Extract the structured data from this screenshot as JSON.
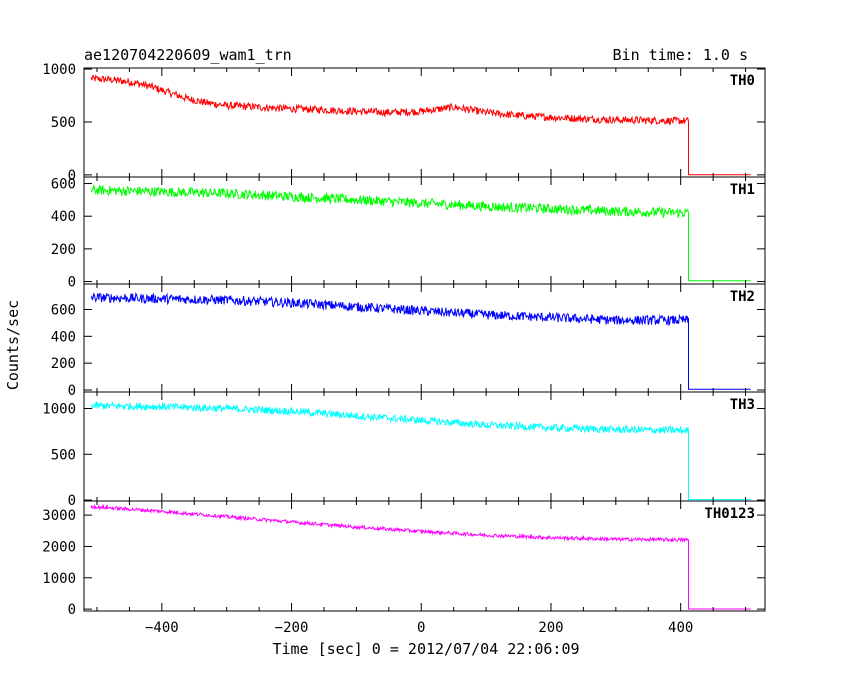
{
  "chart_data": {
    "type": "line",
    "title": "ae120704220609_wam1_trn",
    "bin_time_label": "Bin time: 1.0 s",
    "xlabel": "Time [sec] 0 = 2012/07/04 22:06:09",
    "ylabel": "Counts/sec",
    "xlim": [
      -520,
      530
    ],
    "x_ticks": [
      -400,
      -200,
      0,
      200,
      400
    ],
    "x_tick_labels": [
      "−400",
      "−200",
      "0",
      "200",
      "400"
    ],
    "grid": false,
    "panels": [
      {
        "series_name": "TH0",
        "color": "#ff0000",
        "ylim": [
          -20,
          1010
        ],
        "y_ticks": [
          0,
          500,
          1000
        ],
        "y_tick_labels": [
          "0",
          "500",
          "1000"
        ],
        "x": [
          -509,
          -480,
          -450,
          -420,
          -390,
          -360,
          -330,
          -300,
          -250,
          -200,
          -150,
          -100,
          -50,
          0,
          50,
          100,
          150,
          200,
          250,
          300,
          350,
          410
        ],
        "values": [
          910,
          900,
          880,
          840,
          780,
          720,
          680,
          655,
          640,
          625,
          615,
          600,
          590,
          600,
          640,
          590,
          560,
          545,
          530,
          520,
          515,
          510
        ],
        "noise": 35,
        "tail_value": 2
      },
      {
        "series_name": "TH1",
        "color": "#00ff00",
        "ylim": [
          -15,
          640
        ],
        "y_ticks": [
          0,
          200,
          400,
          600
        ],
        "y_tick_labels": [
          "0",
          "200",
          "400",
          "600"
        ],
        "x": [
          -509,
          -400,
          -300,
          -200,
          -100,
          0,
          100,
          200,
          300,
          410
        ],
        "values": [
          560,
          550,
          540,
          520,
          500,
          480,
          460,
          445,
          430,
          420
        ],
        "noise": 30,
        "tail_value": 5
      },
      {
        "series_name": "TH2",
        "color": "#0000ff",
        "ylim": [
          -15,
          790
        ],
        "y_ticks": [
          0,
          200,
          400,
          600
        ],
        "y_tick_labels": [
          "0",
          "200",
          "400",
          "600"
        ],
        "x": [
          -509,
          -400,
          -300,
          -200,
          -100,
          0,
          100,
          200,
          300,
          410
        ],
        "values": [
          690,
          680,
          670,
          650,
          620,
          590,
          560,
          540,
          520,
          520
        ],
        "noise": 35,
        "tail_value": 5
      },
      {
        "series_name": "TH3",
        "color": "#00ffff",
        "ylim": [
          -10,
          1180
        ],
        "y_ticks": [
          0,
          500,
          1000
        ],
        "y_tick_labels": [
          "0",
          "500",
          "1000"
        ],
        "x": [
          -509,
          -400,
          -300,
          -200,
          -100,
          0,
          100,
          200,
          300,
          410
        ],
        "values": [
          1030,
          1020,
          1000,
          970,
          920,
          870,
          820,
          790,
          770,
          760
        ],
        "noise": 40,
        "tail_value": 5
      },
      {
        "series_name": "TH0123",
        "color": "#ff00ff",
        "ylim": [
          -60,
          3450
        ],
        "y_ticks": [
          0,
          1000,
          2000,
          3000
        ],
        "y_tick_labels": [
          "0",
          "1000",
          "2000",
          "3000"
        ],
        "x": [
          -509,
          -400,
          -300,
          -200,
          -100,
          0,
          100,
          200,
          300,
          410
        ],
        "values": [
          3270,
          3120,
          2950,
          2780,
          2620,
          2480,
          2360,
          2280,
          2230,
          2210
        ],
        "noise": 55,
        "tail_value": 5
      }
    ],
    "drop_time": 412,
    "tail_end_time": 508
  }
}
